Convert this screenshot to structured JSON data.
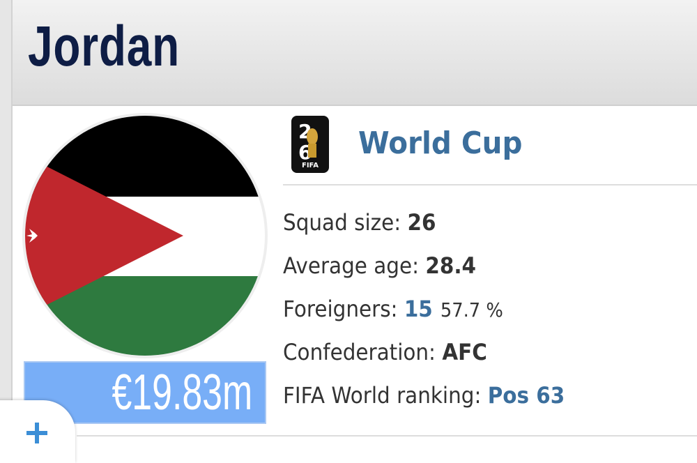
{
  "header": {
    "title": "Jordan"
  },
  "competition": {
    "logo_text": "FIFA",
    "name": "World Cup"
  },
  "market_value": "€19.83m",
  "stats": [
    {
      "label": "Squad size:",
      "value": "26"
    },
    {
      "label": "Average age:",
      "value": "28.4"
    },
    {
      "label": "Foreigners:",
      "value": "15",
      "extra": "57.7 %"
    },
    {
      "label": "Confederation:",
      "value": "AFC"
    },
    {
      "label": "FIFA World ranking:",
      "value": "Pos 63"
    }
  ]
}
